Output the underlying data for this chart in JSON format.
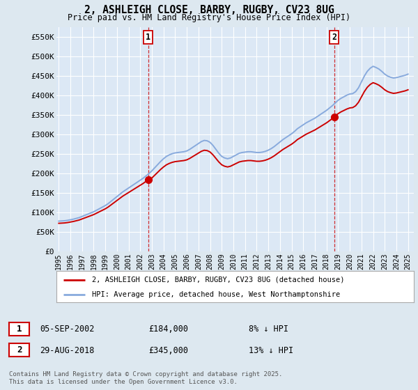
{
  "title": "2, ASHLEIGH CLOSE, BARBY, RUGBY, CV23 8UG",
  "subtitle": "Price paid vs. HM Land Registry's House Price Index (HPI)",
  "ylim": [
    0,
    575000
  ],
  "yticks": [
    0,
    50000,
    100000,
    150000,
    200000,
    250000,
    300000,
    350000,
    400000,
    450000,
    500000,
    550000
  ],
  "ytick_labels": [
    "£0",
    "£50K",
    "£100K",
    "£150K",
    "£200K",
    "£250K",
    "£300K",
    "£350K",
    "£400K",
    "£450K",
    "£500K",
    "£550K"
  ],
  "background_color": "#dde8f0",
  "plot_bg_color": "#dce8f5",
  "grid_color": "#ffffff",
  "red_color": "#cc0000",
  "blue_color": "#88aadd",
  "sale1_year": 2002.67,
  "sale1_price": 184000,
  "sale1_label": "1",
  "sale1_date": "05-SEP-2002",
  "sale1_note": "8% ↓ HPI",
  "sale2_year": 2018.66,
  "sale2_price": 345000,
  "sale2_label": "2",
  "sale2_date": "29-AUG-2018",
  "sale2_note": "13% ↓ HPI",
  "legend_line1": "2, ASHLEIGH CLOSE, BARBY, RUGBY, CV23 8UG (detached house)",
  "legend_line2": "HPI: Average price, detached house, West Northamptonshire",
  "footnote": "Contains HM Land Registry data © Crown copyright and database right 2025.\nThis data is licensed under the Open Government Licence v3.0.",
  "hpi_years": [
    1995.0,
    1995.25,
    1995.5,
    1995.75,
    1996.0,
    1996.25,
    1996.5,
    1996.75,
    1997.0,
    1997.25,
    1997.5,
    1997.75,
    1998.0,
    1998.25,
    1998.5,
    1998.75,
    1999.0,
    1999.25,
    1999.5,
    1999.75,
    2000.0,
    2000.25,
    2000.5,
    2000.75,
    2001.0,
    2001.25,
    2001.5,
    2001.75,
    2002.0,
    2002.25,
    2002.5,
    2002.75,
    2003.0,
    2003.25,
    2003.5,
    2003.75,
    2004.0,
    2004.25,
    2004.5,
    2004.75,
    2005.0,
    2005.25,
    2005.5,
    2005.75,
    2006.0,
    2006.25,
    2006.5,
    2006.75,
    2007.0,
    2007.25,
    2007.5,
    2007.75,
    2008.0,
    2008.25,
    2008.5,
    2008.75,
    2009.0,
    2009.25,
    2009.5,
    2009.75,
    2010.0,
    2010.25,
    2010.5,
    2010.75,
    2011.0,
    2011.25,
    2011.5,
    2011.75,
    2012.0,
    2012.25,
    2012.5,
    2012.75,
    2013.0,
    2013.25,
    2013.5,
    2013.75,
    2014.0,
    2014.25,
    2014.5,
    2014.75,
    2015.0,
    2015.25,
    2015.5,
    2015.75,
    2016.0,
    2016.25,
    2016.5,
    2016.75,
    2017.0,
    2017.25,
    2017.5,
    2017.75,
    2018.0,
    2018.25,
    2018.5,
    2018.75,
    2019.0,
    2019.25,
    2019.5,
    2019.75,
    2020.0,
    2020.25,
    2020.5,
    2020.75,
    2021.0,
    2021.25,
    2021.5,
    2021.75,
    2022.0,
    2022.25,
    2022.5,
    2022.75,
    2023.0,
    2023.25,
    2023.5,
    2023.75,
    2024.0,
    2024.25,
    2024.5,
    2024.75,
    2025.0
  ],
  "hpi_values": [
    78000,
    78500,
    79000,
    80000,
    81500,
    83000,
    85000,
    87000,
    90000,
    93000,
    96000,
    99000,
    102000,
    106000,
    110000,
    114000,
    118000,
    123000,
    129000,
    135000,
    141000,
    147000,
    153000,
    158000,
    163000,
    168000,
    173000,
    178000,
    183000,
    188000,
    194000,
    200000,
    207000,
    215000,
    223000,
    231000,
    238000,
    244000,
    248000,
    251000,
    253000,
    254000,
    255000,
    256000,
    258000,
    262000,
    267000,
    272000,
    277000,
    282000,
    285000,
    284000,
    280000,
    272000,
    262000,
    252000,
    244000,
    240000,
    238000,
    240000,
    244000,
    248000,
    252000,
    254000,
    255000,
    256000,
    256000,
    255000,
    254000,
    254000,
    255000,
    257000,
    260000,
    264000,
    269000,
    275000,
    281000,
    287000,
    292000,
    297000,
    302000,
    308000,
    315000,
    320000,
    325000,
    330000,
    334000,
    338000,
    342000,
    347000,
    352000,
    357000,
    362000,
    368000,
    374000,
    381000,
    388000,
    393000,
    397000,
    401000,
    404000,
    405000,
    410000,
    420000,
    435000,
    450000,
    462000,
    470000,
    475000,
    472000,
    468000,
    462000,
    455000,
    450000,
    447000,
    445000,
    446000,
    448000,
    450000,
    452000,
    455000
  ],
  "xtick_years": [
    1995,
    1996,
    1997,
    1998,
    1999,
    2000,
    2001,
    2002,
    2003,
    2004,
    2005,
    2006,
    2007,
    2008,
    2009,
    2010,
    2011,
    2012,
    2013,
    2014,
    2015,
    2016,
    2017,
    2018,
    2019,
    2020,
    2021,
    2022,
    2023,
    2024,
    2025
  ]
}
